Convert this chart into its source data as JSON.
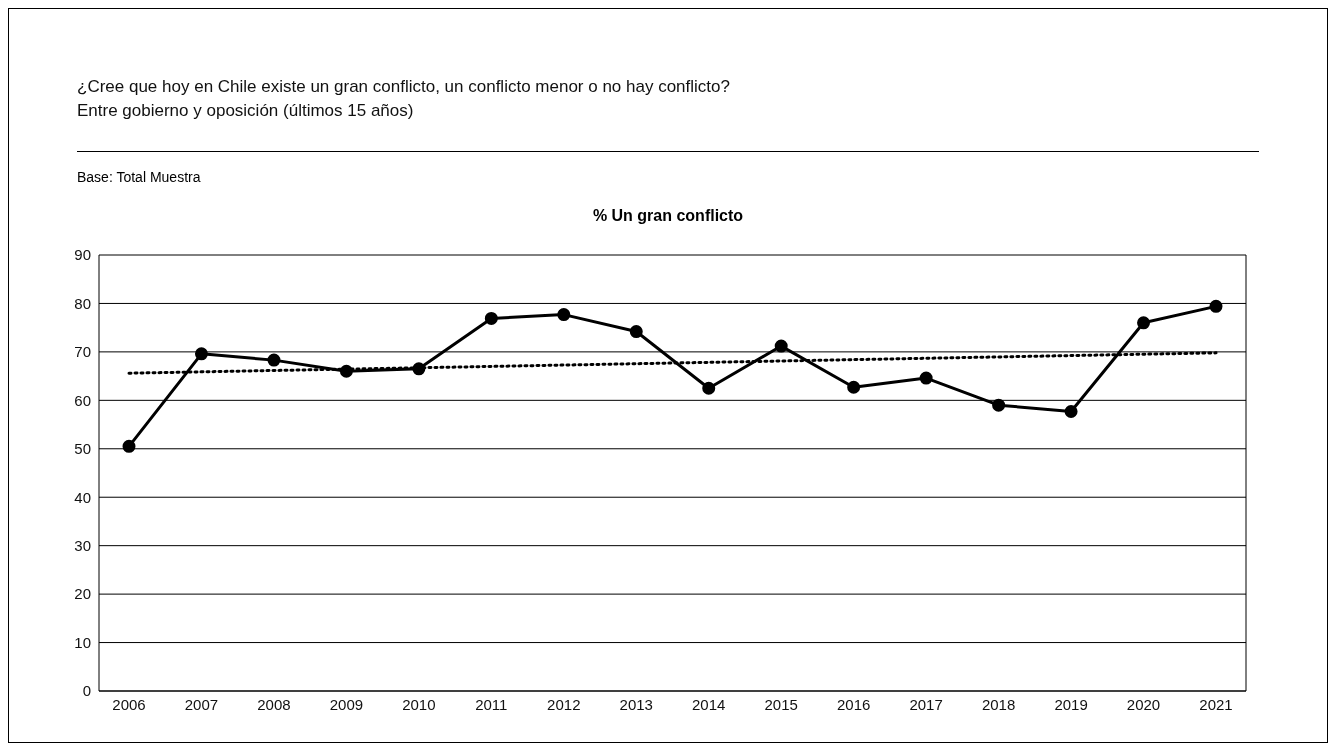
{
  "chart_data": {
    "type": "line",
    "title": "¿Cree que hoy en Chile existe un gran conflicto, un conflicto menor o no hay conflicto?",
    "subtitle": "Entre gobierno y oposición (últimos 15 años)",
    "annotations": [
      "Base: Total Muestra",
      "% Un gran conflicto"
    ],
    "categories": [
      "2006",
      "2007",
      "2008",
      "2009",
      "2010",
      "2011",
      "2012",
      "2013",
      "2014",
      "2015",
      "2016",
      "2017",
      "2018",
      "2019",
      "2020",
      "2021"
    ],
    "series": [
      {
        "color": "#000000",
        "marker": "circle",
        "line_style": "solid",
        "values": [
          50.5,
          69.6,
          68.3,
          66.0,
          66.5,
          76.9,
          77.7,
          74.2,
          62.5,
          71.2,
          62.7,
          64.6,
          59.0,
          57.7,
          76.0,
          79.4
        ]
      },
      {
        "type": "line",
        "color": "#000000",
        "marker": "none",
        "line_style": "dotted",
        "values": [
          65.6,
          null,
          null,
          null,
          null,
          null,
          null,
          null,
          null,
          null,
          null,
          null,
          null,
          null,
          null,
          69.8
        ]
      }
    ],
    "ylim": [
      0,
      90
    ],
    "yticks": [
      0,
      10,
      20,
      30,
      40,
      50,
      60,
      70,
      80,
      90
    ],
    "grid": "y",
    "legend": false
  }
}
